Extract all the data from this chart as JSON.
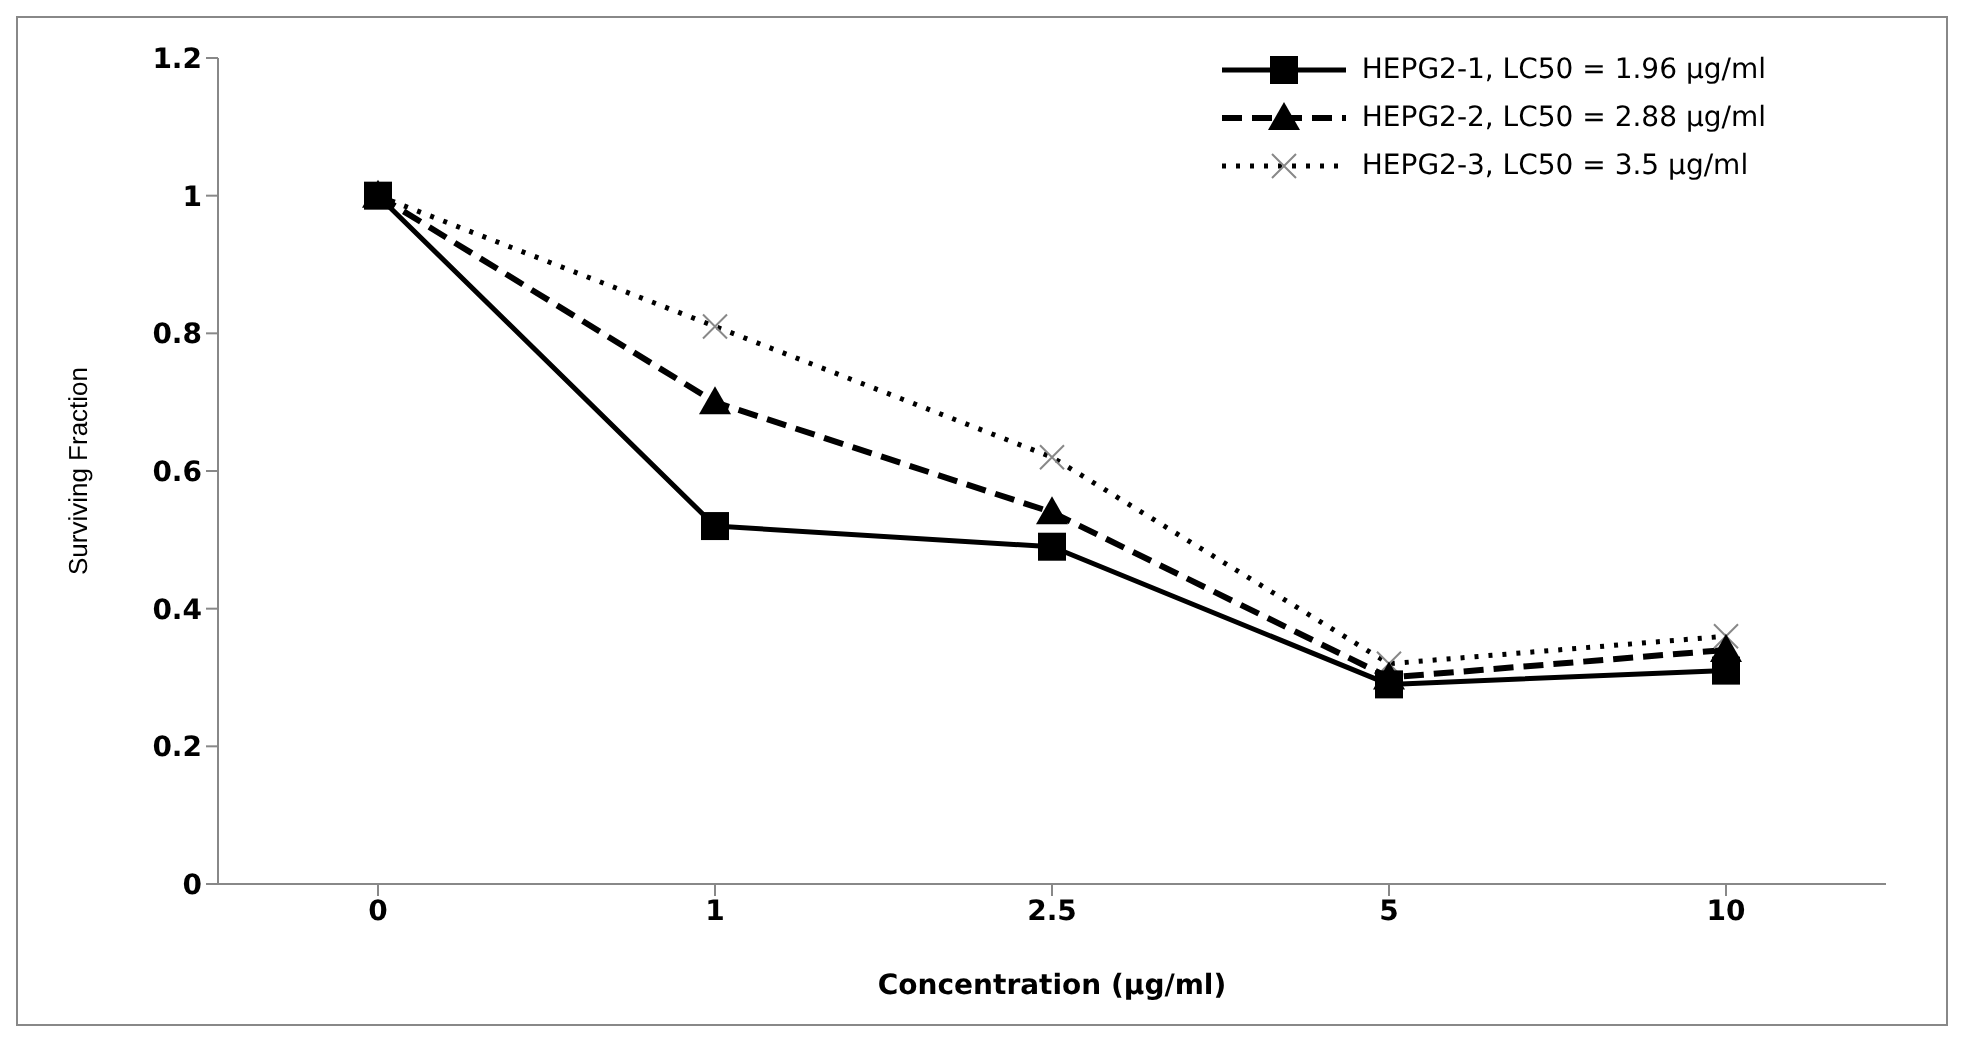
{
  "chart_data": {
    "type": "line",
    "xlabel": "Concentration (µg/ml)",
    "ylabel": "Surviving Fraction",
    "categories": [
      "0",
      "1",
      "2.5",
      "5",
      "10"
    ],
    "ylim": [
      0,
      1.2
    ],
    "yticks": [
      0,
      0.2,
      0.4,
      0.6,
      0.8,
      1,
      1.2
    ],
    "grid": false,
    "legend": "top right",
    "series": [
      {
        "name": "HEPG2-1, LC50 = 1.96 µg/ml",
        "color": "#000000",
        "marker": "square",
        "line_style": "solid",
        "values": [
          1,
          0.52,
          0.49,
          0.29,
          0.31
        ]
      },
      {
        "name": "HEPG2-2, LC50 = 2.88 µg/ml",
        "color": "#000000",
        "marker": "triangle",
        "line_style": "dashed",
        "values": [
          1,
          0.7,
          0.54,
          0.3,
          0.34
        ]
      },
      {
        "name": "HEPG2-3, LC50 = 3.5 µg/ml",
        "color": "#000000",
        "marker": "cross",
        "line_style": "dotted",
        "values": [
          1,
          0.81,
          0.62,
          0.32,
          0.36
        ]
      }
    ]
  }
}
